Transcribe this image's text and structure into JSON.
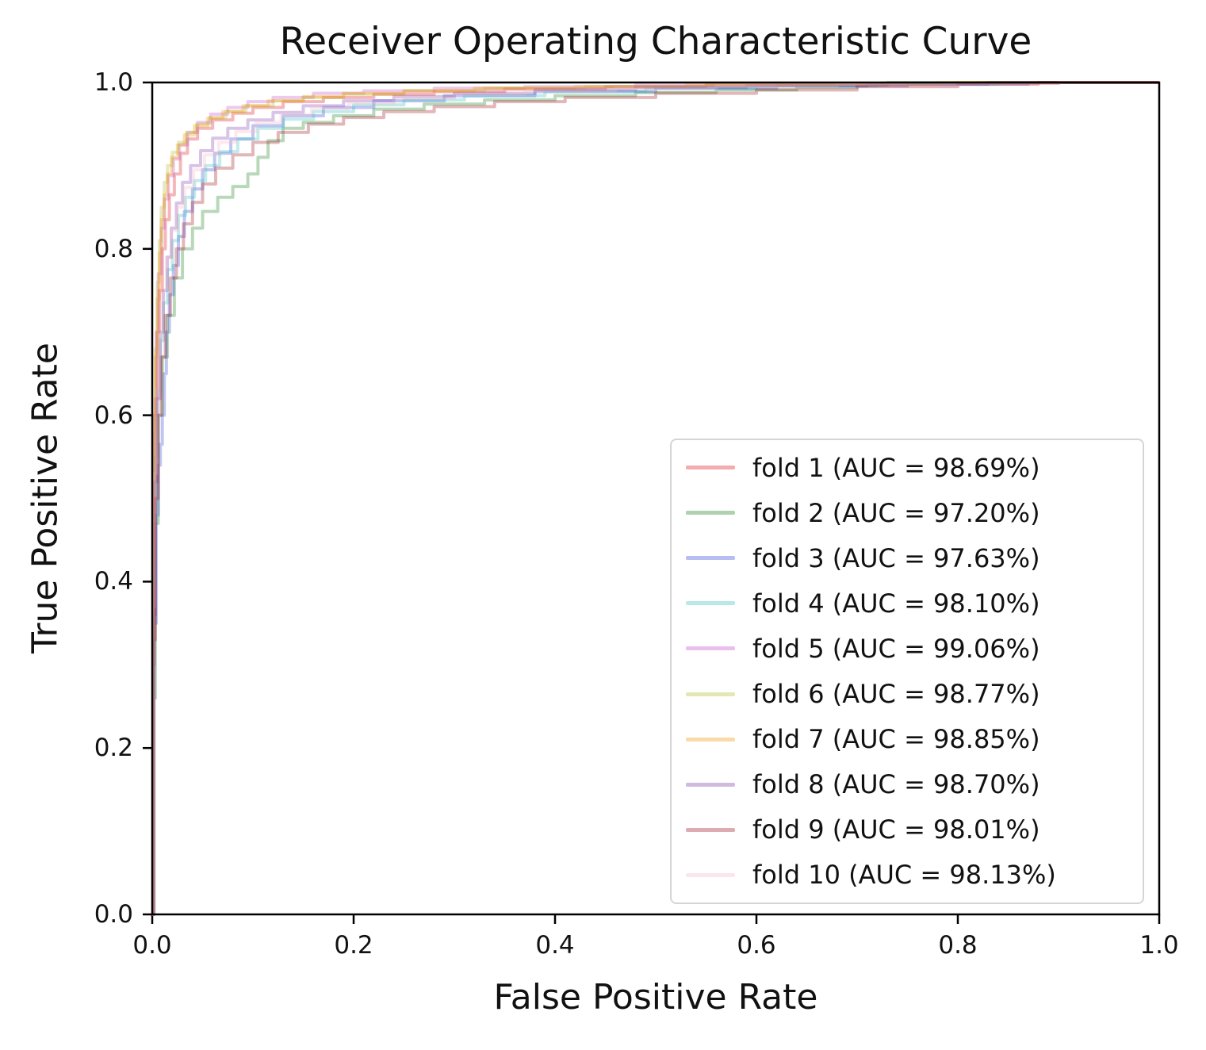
{
  "title": "Receiver Operating Characteristic Curve",
  "axes": {
    "xlabel": "False Positive Rate",
    "ylabel": "True Positive Rate",
    "x_tick_labels": [
      "0.0",
      "0.2",
      "0.4",
      "0.6",
      "0.8",
      "1.0"
    ],
    "y_tick_labels": [
      "0.0",
      "0.2",
      "0.4",
      "0.6",
      "0.8",
      "1.0"
    ]
  },
  "chart_data": {
    "type": "line",
    "title": "Receiver Operating Characteristic Curve",
    "xlabel": "False Positive Rate",
    "ylabel": "True Positive Rate",
    "xlim": [
      0.0,
      1.0
    ],
    "ylim": [
      0.0,
      1.0
    ],
    "grid": false,
    "legend_position": "lower right",
    "curve_style": {
      "line_opacity": 0.3,
      "line_width": 4
    },
    "series": [
      {
        "name": "fold 1",
        "auc": "98.69%",
        "label": "fold 1 (AUC = 98.69%)",
        "color": "#dd1219",
        "points": [
          [
            0,
            0
          ],
          [
            0.001,
            0.3
          ],
          [
            0.002,
            0.52
          ],
          [
            0.003,
            0.62
          ],
          [
            0.005,
            0.7
          ],
          [
            0.007,
            0.75
          ],
          [
            0.01,
            0.8
          ],
          [
            0.013,
            0.835
          ],
          [
            0.017,
            0.865
          ],
          [
            0.022,
            0.89
          ],
          [
            0.028,
            0.915
          ],
          [
            0.035,
            0.932
          ],
          [
            0.045,
            0.945
          ],
          [
            0.06,
            0.955
          ],
          [
            0.08,
            0.963
          ],
          [
            0.1,
            0.97
          ],
          [
            0.13,
            0.977
          ],
          [
            0.17,
            0.982
          ],
          [
            0.22,
            0.986
          ],
          [
            0.28,
            0.989
          ],
          [
            0.35,
            0.992
          ],
          [
            0.45,
            0.995
          ],
          [
            0.55,
            0.997
          ],
          [
            0.68,
            0.998
          ],
          [
            0.8,
            0.999
          ],
          [
            0.9,
            1.0
          ],
          [
            1,
            1
          ]
        ]
      },
      {
        "name": "fold 2",
        "auc": "97.20%",
        "label": "fold 2 (AUC = 97.20%)",
        "color": "#167d19",
        "points": [
          [
            0,
            0
          ],
          [
            0.001,
            0.26
          ],
          [
            0.003,
            0.47
          ],
          [
            0.006,
            0.6
          ],
          [
            0.01,
            0.67
          ],
          [
            0.015,
            0.72
          ],
          [
            0.022,
            0.765
          ],
          [
            0.03,
            0.8
          ],
          [
            0.04,
            0.825
          ],
          [
            0.05,
            0.845
          ],
          [
            0.065,
            0.862
          ],
          [
            0.08,
            0.875
          ],
          [
            0.095,
            0.89
          ],
          [
            0.105,
            0.91
          ],
          [
            0.115,
            0.93
          ],
          [
            0.13,
            0.945
          ],
          [
            0.15,
            0.952
          ],
          [
            0.18,
            0.96
          ],
          [
            0.22,
            0.968
          ],
          [
            0.27,
            0.974
          ],
          [
            0.33,
            0.979
          ],
          [
            0.4,
            0.984
          ],
          [
            0.48,
            0.988
          ],
          [
            0.56,
            0.991
          ],
          [
            0.64,
            0.994
          ],
          [
            0.7,
            0.997
          ],
          [
            0.73,
            1.0
          ],
          [
            1,
            1
          ]
        ]
      },
      {
        "name": "fold 3",
        "auc": "97.63%",
        "label": "fold 3 (AUC = 97.63%)",
        "color": "#3041d4",
        "points": [
          [
            0,
            0
          ],
          [
            0.002,
            0.35
          ],
          [
            0.004,
            0.48
          ],
          [
            0.006,
            0.54
          ],
          [
            0.008,
            0.565
          ],
          [
            0.01,
            0.6
          ],
          [
            0.012,
            0.65
          ],
          [
            0.014,
            0.7
          ],
          [
            0.017,
            0.745
          ],
          [
            0.021,
            0.78
          ],
          [
            0.026,
            0.815
          ],
          [
            0.032,
            0.845
          ],
          [
            0.04,
            0.872
          ],
          [
            0.05,
            0.895
          ],
          [
            0.062,
            0.915
          ],
          [
            0.078,
            0.932
          ],
          [
            0.1,
            0.948
          ],
          [
            0.13,
            0.96
          ],
          [
            0.17,
            0.97
          ],
          [
            0.22,
            0.978
          ],
          [
            0.29,
            0.984
          ],
          [
            0.38,
            0.989
          ],
          [
            0.5,
            0.993
          ],
          [
            0.62,
            0.996
          ],
          [
            0.75,
            0.998
          ],
          [
            0.87,
            1.0
          ],
          [
            1,
            1
          ]
        ]
      },
      {
        "name": "fold 4",
        "auc": "98.10%",
        "label": "fold 4 (AUC = 98.10%)",
        "color": "#34bcb9",
        "points": [
          [
            0,
            0
          ],
          [
            0.001,
            0.4
          ],
          [
            0.003,
            0.55
          ],
          [
            0.005,
            0.63
          ],
          [
            0.008,
            0.69
          ],
          [
            0.011,
            0.735
          ],
          [
            0.015,
            0.775
          ],
          [
            0.02,
            0.81
          ],
          [
            0.026,
            0.84
          ],
          [
            0.033,
            0.862
          ],
          [
            0.042,
            0.882
          ],
          [
            0.053,
            0.9
          ],
          [
            0.067,
            0.917
          ],
          [
            0.085,
            0.932
          ],
          [
            0.105,
            0.945
          ],
          [
            0.13,
            0.956
          ],
          [
            0.16,
            0.965
          ],
          [
            0.2,
            0.973
          ],
          [
            0.25,
            0.979
          ],
          [
            0.31,
            0.984
          ],
          [
            0.39,
            0.989
          ],
          [
            0.49,
            0.993
          ],
          [
            0.6,
            0.996
          ],
          [
            0.72,
            0.998
          ],
          [
            0.84,
            1.0
          ],
          [
            1,
            1
          ]
        ]
      },
      {
        "name": "fold 5",
        "auc": "99.06%",
        "label": "fold 5 (AUC = 99.06%)",
        "color": "#c348cd",
        "points": [
          [
            0,
            0
          ],
          [
            0.001,
            0.45
          ],
          [
            0.002,
            0.6
          ],
          [
            0.004,
            0.7
          ],
          [
            0.006,
            0.77
          ],
          [
            0.009,
            0.825
          ],
          [
            0.012,
            0.86
          ],
          [
            0.016,
            0.888
          ],
          [
            0.021,
            0.908
          ],
          [
            0.027,
            0.925
          ],
          [
            0.035,
            0.94
          ],
          [
            0.045,
            0.952
          ],
          [
            0.058,
            0.962
          ],
          [
            0.075,
            0.97
          ],
          [
            0.095,
            0.977
          ],
          [
            0.12,
            0.982
          ],
          [
            0.16,
            0.987
          ],
          [
            0.21,
            0.99
          ],
          [
            0.28,
            0.993
          ],
          [
            0.37,
            0.995
          ],
          [
            0.48,
            0.997
          ],
          [
            0.6,
            0.998
          ],
          [
            0.72,
            0.999
          ],
          [
            0.82,
            1.0
          ],
          [
            1,
            1
          ]
        ]
      },
      {
        "name": "fold 6",
        "auc": "98.77%",
        "label": "fold 6 (AUC = 98.77%)",
        "color": "#afb923",
        "points": [
          [
            0,
            0
          ],
          [
            0.001,
            0.45
          ],
          [
            0.002,
            0.6
          ],
          [
            0.003,
            0.68
          ],
          [
            0.005,
            0.76
          ],
          [
            0.007,
            0.81
          ],
          [
            0.009,
            0.85
          ],
          [
            0.012,
            0.88
          ],
          [
            0.015,
            0.9
          ],
          [
            0.02,
            0.916
          ],
          [
            0.026,
            0.928
          ],
          [
            0.034,
            0.94
          ],
          [
            0.044,
            0.95
          ],
          [
            0.057,
            0.958
          ],
          [
            0.073,
            0.965
          ],
          [
            0.093,
            0.972
          ],
          [
            0.12,
            0.978
          ],
          [
            0.15,
            0.982
          ],
          [
            0.19,
            0.986
          ],
          [
            0.25,
            0.99
          ],
          [
            0.33,
            0.993
          ],
          [
            0.43,
            0.995
          ],
          [
            0.55,
            0.997
          ],
          [
            0.68,
            0.999
          ],
          [
            0.8,
            1.0
          ],
          [
            1,
            1
          ]
        ]
      },
      {
        "name": "fold 7",
        "auc": "98.85%",
        "label": "fold 7 (AUC = 98.85%)",
        "color": "#f29400",
        "points": [
          [
            0,
            0
          ],
          [
            0.001,
            0.42
          ],
          [
            0.002,
            0.58
          ],
          [
            0.003,
            0.67
          ],
          [
            0.005,
            0.74
          ],
          [
            0.007,
            0.795
          ],
          [
            0.009,
            0.835
          ],
          [
            0.012,
            0.865
          ],
          [
            0.015,
            0.89
          ],
          [
            0.019,
            0.91
          ],
          [
            0.025,
            0.925
          ],
          [
            0.032,
            0.937
          ],
          [
            0.042,
            0.948
          ],
          [
            0.055,
            0.957
          ],
          [
            0.07,
            0.965
          ],
          [
            0.09,
            0.972
          ],
          [
            0.115,
            0.978
          ],
          [
            0.15,
            0.983
          ],
          [
            0.19,
            0.987
          ],
          [
            0.25,
            0.99
          ],
          [
            0.32,
            0.993
          ],
          [
            0.42,
            0.995
          ],
          [
            0.53,
            0.997
          ],
          [
            0.65,
            0.998
          ],
          [
            0.78,
            1.0
          ],
          [
            1,
            1
          ]
        ]
      },
      {
        "name": "fold 8",
        "auc": "98.70%",
        "label": "fold 8 (AUC = 98.70%)",
        "color": "#7a3aac",
        "points": [
          [
            0,
            0
          ],
          [
            0.001,
            0.36
          ],
          [
            0.003,
            0.52
          ],
          [
            0.005,
            0.62
          ],
          [
            0.008,
            0.7
          ],
          [
            0.011,
            0.75
          ],
          [
            0.015,
            0.79
          ],
          [
            0.019,
            0.825
          ],
          [
            0.024,
            0.855
          ],
          [
            0.03,
            0.88
          ],
          [
            0.038,
            0.9
          ],
          [
            0.048,
            0.918
          ],
          [
            0.06,
            0.933
          ],
          [
            0.075,
            0.945
          ],
          [
            0.095,
            0.955
          ],
          [
            0.12,
            0.964
          ],
          [
            0.15,
            0.972
          ],
          [
            0.19,
            0.978
          ],
          [
            0.24,
            0.983
          ],
          [
            0.3,
            0.987
          ],
          [
            0.38,
            0.991
          ],
          [
            0.48,
            0.994
          ],
          [
            0.59,
            0.996
          ],
          [
            0.71,
            0.998
          ],
          [
            0.83,
            1.0
          ],
          [
            1,
            1
          ]
        ]
      },
      {
        "name": "fold 9",
        "auc": "98.01%",
        "label": "fold 9 (AUC = 98.01%)",
        "color": "#9e121c",
        "points": [
          [
            0,
            0
          ],
          [
            0.001,
            0.33
          ],
          [
            0.003,
            0.5
          ],
          [
            0.006,
            0.6
          ],
          [
            0.009,
            0.67
          ],
          [
            0.013,
            0.72
          ],
          [
            0.018,
            0.765
          ],
          [
            0.024,
            0.8
          ],
          [
            0.031,
            0.83
          ],
          [
            0.04,
            0.856
          ],
          [
            0.05,
            0.878
          ],
          [
            0.063,
            0.897
          ],
          [
            0.08,
            0.913
          ],
          [
            0.1,
            0.928
          ],
          [
            0.125,
            0.94
          ],
          [
            0.155,
            0.95
          ],
          [
            0.19,
            0.958
          ],
          [
            0.23,
            0.965
          ],
          [
            0.28,
            0.971
          ],
          [
            0.34,
            0.977
          ],
          [
            0.41,
            0.982
          ],
          [
            0.5,
            0.987
          ],
          [
            0.6,
            0.991
          ],
          [
            0.7,
            0.995
          ],
          [
            0.8,
            0.998
          ],
          [
            0.88,
            1.0
          ],
          [
            1,
            1
          ]
        ]
      },
      {
        "name": "fold 10",
        "auc": "98.13%",
        "label": "fold 10 (AUC = 98.13%)",
        "color": "#f5b6c6",
        "points": [
          [
            0,
            0
          ],
          [
            0.001,
            0.37
          ],
          [
            0.002,
            0.53
          ],
          [
            0.004,
            0.63
          ],
          [
            0.007,
            0.7
          ],
          [
            0.01,
            0.75
          ],
          [
            0.014,
            0.79
          ],
          [
            0.019,
            0.822
          ],
          [
            0.025,
            0.85
          ],
          [
            0.032,
            0.874
          ],
          [
            0.041,
            0.895
          ],
          [
            0.052,
            0.913
          ],
          [
            0.066,
            0.928
          ],
          [
            0.083,
            0.941
          ],
          [
            0.103,
            0.952
          ],
          [
            0.128,
            0.961
          ],
          [
            0.158,
            0.969
          ],
          [
            0.195,
            0.975
          ],
          [
            0.24,
            0.981
          ],
          [
            0.3,
            0.986
          ],
          [
            0.37,
            0.99
          ],
          [
            0.46,
            0.993
          ],
          [
            0.56,
            0.996
          ],
          [
            0.68,
            0.998
          ],
          [
            0.8,
            0.999
          ],
          [
            0.9,
            1.0
          ],
          [
            1,
            1
          ]
        ]
      }
    ]
  }
}
